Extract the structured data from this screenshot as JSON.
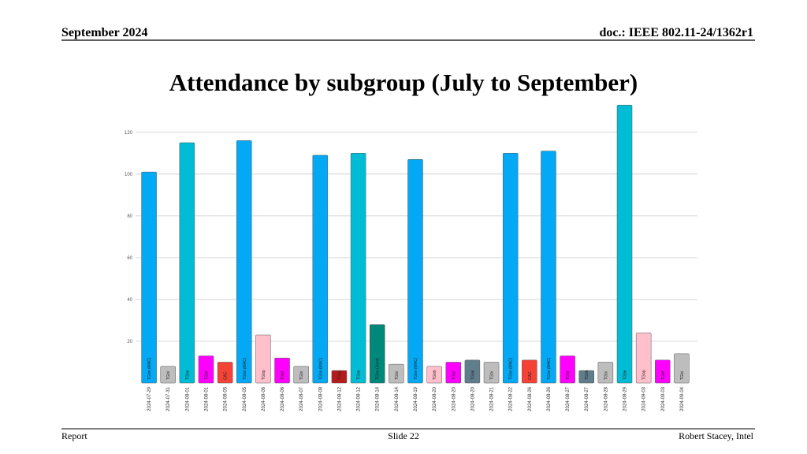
{
  "header": {
    "date": "September 2024",
    "doc": "doc.: IEEE 802.11-24/1362r1"
  },
  "footer": {
    "left": "Report",
    "center": "Slide 22",
    "right": "Robert Stacey, Intel"
  },
  "chart_data": {
    "type": "bar",
    "title": "Attendance by subgroup (July to September)",
    "categories": [
      "2024-07-29",
      "2024-07-31",
      "2024-08-01",
      "2024-08-01",
      "2024-08-05",
      "2024-08-05",
      "2024-08-06",
      "2024-08-06",
      "2024-08-07",
      "2024-08-08",
      "2024-08-12",
      "2024-08-12",
      "2024-08-14",
      "2024-08-14",
      "2024-08-19",
      "2024-08-20",
      "2024-08-20",
      "2024-08-20",
      "2024-08-21",
      "2024-08-22",
      "2024-08-26",
      "2024-08-26",
      "2024-08-27",
      "2024-08-27",
      "2024-08-28",
      "2024-08-29",
      "2024-09-03",
      "2024-09-03",
      "2024-09-04"
    ],
    "bar_labels": [
      "TGbn (MAC)",
      "TGbi",
      "TGbe",
      "TGbf",
      "CAC",
      "TGbn (MAC)",
      "TGbp",
      "TGbf",
      "TGbi",
      "TGbn (MAC)",
      "TGbj",
      "TGbe",
      "TGbn (Joint)",
      "TGbi",
      "TGbn (MAC)",
      "TGbh",
      "TGbf",
      "TGbk",
      "TGbi",
      "TGbn (MAC)",
      "CAC",
      "TGbn (MAC)",
      "TGbf",
      "TGbk",
      "TGbi",
      "TGbe",
      "TGbp",
      "TGbf",
      "TGbi"
    ],
    "values": [
      101,
      8,
      115,
      13,
      10,
      116,
      23,
      12,
      8,
      109,
      6,
      110,
      28,
      9,
      107,
      8,
      10,
      11,
      10,
      110,
      11,
      111,
      13,
      6,
      10,
      133,
      24,
      11,
      14
    ],
    "colors": [
      "#03a9f4",
      "#bdbdbd",
      "#00bcd4",
      "#ff00ff",
      "#f44336",
      "#03a9f4",
      "#ffc0cb",
      "#ff00ff",
      "#bdbdbd",
      "#03a9f4",
      "#b71c1c",
      "#00bcd4",
      "#00897b",
      "#bdbdbd",
      "#03a9f4",
      "#ffc0cb",
      "#ff00ff",
      "#607d8b",
      "#bdbdbd",
      "#03a9f4",
      "#f44336",
      "#03a9f4",
      "#ff00ff",
      "#607d8b",
      "#bdbdbd",
      "#00bcd4",
      "#ffc0cb",
      "#ff00ff",
      "#bdbdbd"
    ],
    "ylim": [
      0,
      135
    ],
    "yticks": [
      20,
      40,
      60,
      80,
      100,
      120
    ],
    "grid": true
  }
}
